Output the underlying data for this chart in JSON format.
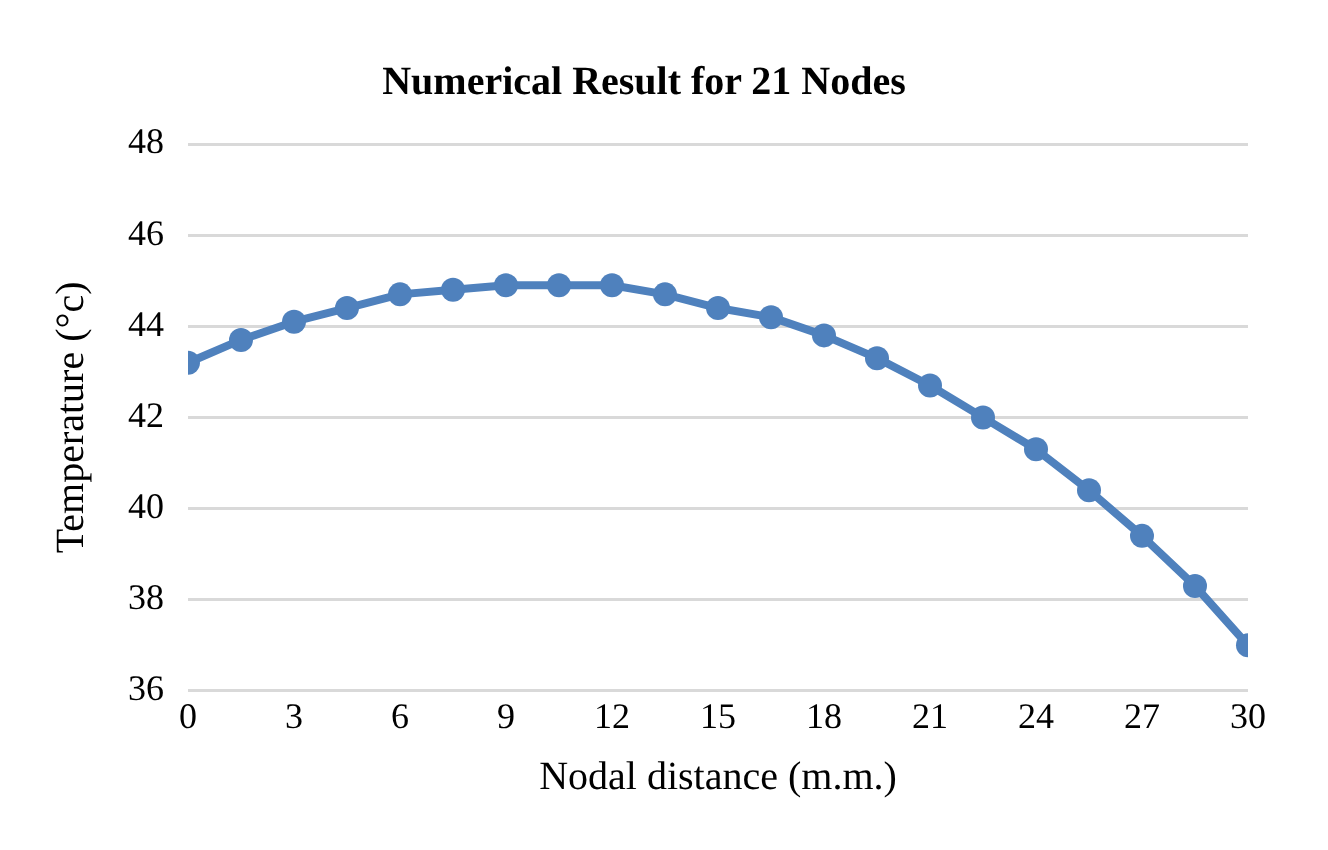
{
  "chart_data": {
    "type": "line",
    "title": "Numerical Result for 21 Nodes",
    "xlabel": "Nodal distance (m.m.)",
    "ylabel": "Temperature (°c)",
    "x": [
      0,
      1.5,
      3,
      4.5,
      6,
      7.5,
      9,
      10.5,
      12,
      13.5,
      15,
      16.5,
      18,
      19.5,
      21,
      22.5,
      24,
      25.5,
      27,
      28.5,
      30
    ],
    "series": [
      {
        "color": "#4f81bd",
        "values": [
          43.2,
          43.7,
          44.1,
          44.4,
          44.7,
          44.8,
          44.9,
          44.9,
          44.9,
          44.7,
          44.4,
          44.2,
          43.8,
          43.3,
          42.7,
          42.0,
          41.3,
          40.4,
          39.4,
          38.3,
          37.0
        ]
      }
    ],
    "xlim": [
      0,
      30
    ],
    "xticks": [
      0,
      3,
      6,
      9,
      12,
      15,
      18,
      21,
      24,
      27,
      30
    ],
    "ylim": [
      36,
      48
    ],
    "yticks": [
      36,
      38,
      40,
      42,
      44,
      46,
      48
    ],
    "grid": "y",
    "legend": false,
    "marker": "circle",
    "line_style": "solid"
  }
}
